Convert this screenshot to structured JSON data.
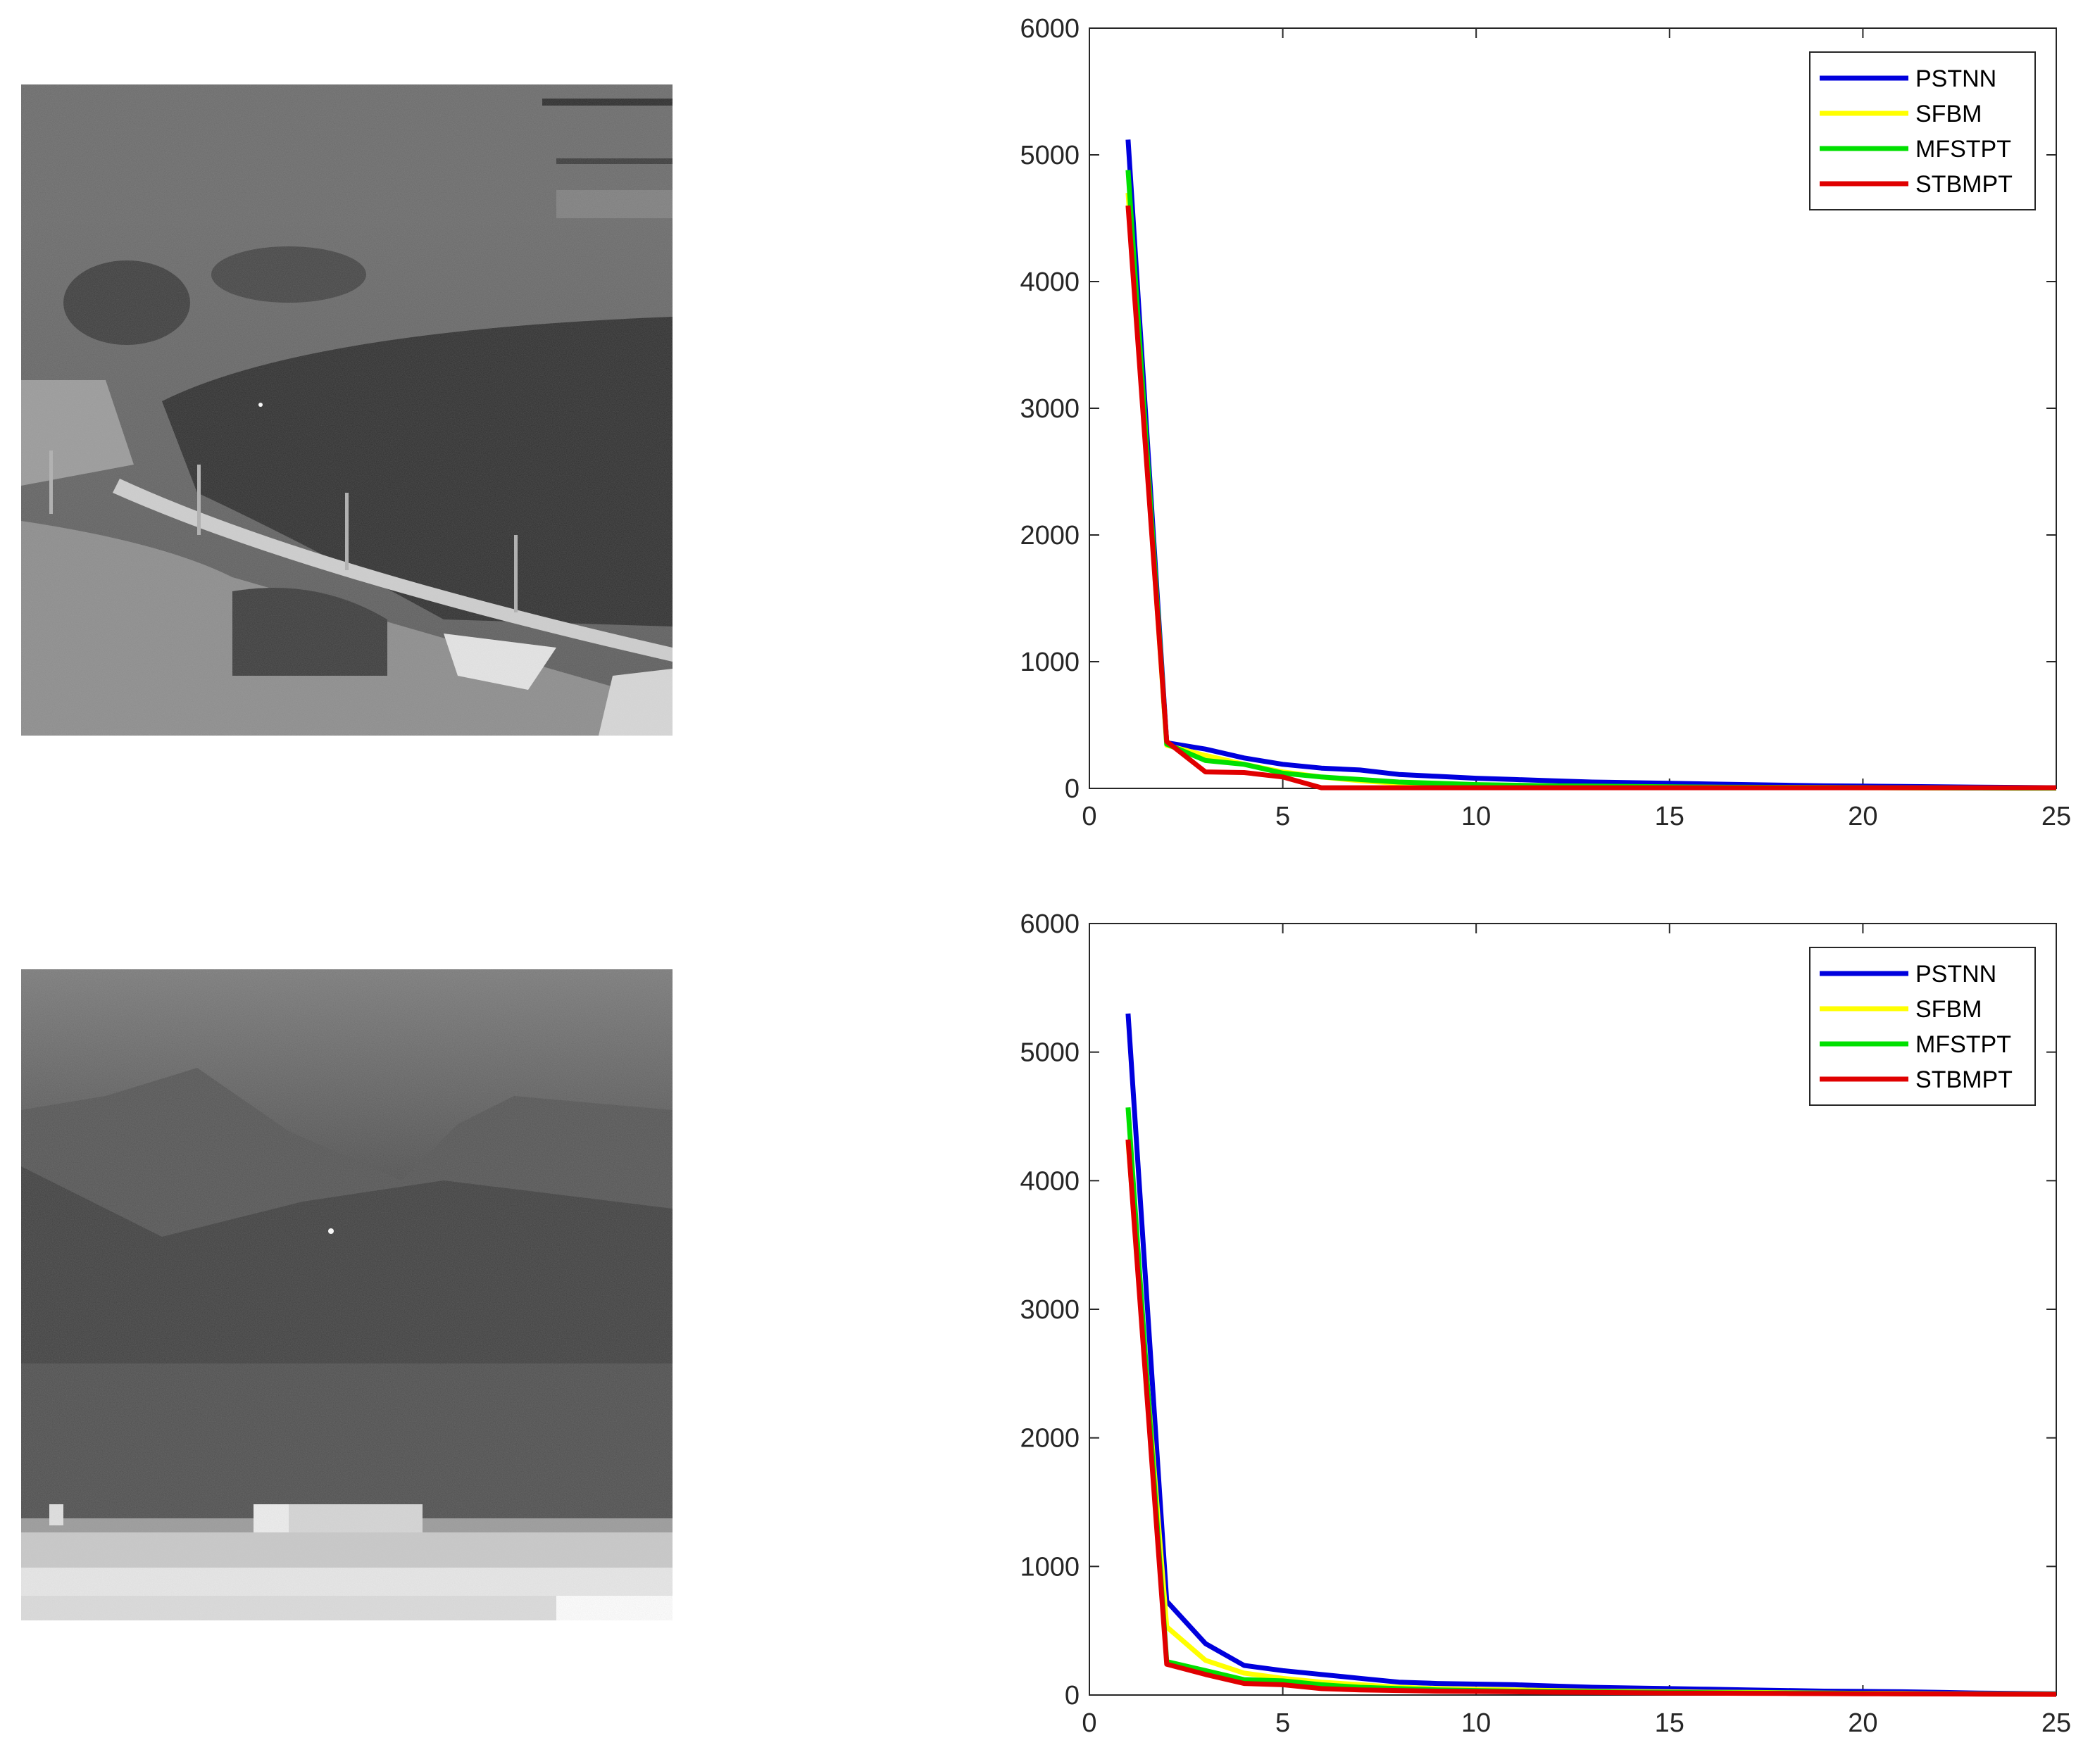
{
  "figure": {
    "panels": [
      {
        "image": {
          "kind": "infrared-scene",
          "scene": "hillside with trees, road and poles; small bright target in trees"
        }
      },
      {
        "image": {
          "kind": "infrared-scene",
          "scene": "mountains, dark sky region, buildings at bottom; small bright target in sky"
        }
      }
    ]
  },
  "chart_data": [
    {
      "type": "line",
      "title": "",
      "xlabel": "",
      "ylabel": "",
      "xlim": [
        0,
        25
      ],
      "ylim": [
        0,
        6000
      ],
      "xticks": [
        0,
        5,
        10,
        15,
        20,
        25
      ],
      "yticks": [
        0,
        1000,
        2000,
        3000,
        4000,
        5000,
        6000
      ],
      "grid": false,
      "legend_position": "top-right",
      "x": [
        1,
        2,
        3,
        4,
        5,
        6,
        7,
        8,
        9,
        10,
        11,
        12,
        13,
        14,
        15,
        16,
        17,
        18,
        19,
        20,
        21,
        22,
        23,
        24,
        25
      ],
      "series": [
        {
          "name": "PSTNN",
          "color": "#0000dd",
          "values": [
            5120,
            360,
            310,
            240,
            190,
            160,
            145,
            110,
            95,
            80,
            70,
            60,
            50,
            45,
            40,
            35,
            30,
            25,
            20,
            18,
            15,
            12,
            10,
            8,
            5
          ]
        },
        {
          "name": "SFBM",
          "color": "#ffff00",
          "values": [
            4700,
            340,
            260,
            190,
            130,
            90,
            60,
            40,
            30,
            25,
            20,
            18,
            15,
            12,
            10,
            9,
            8,
            7,
            6,
            5,
            4,
            3,
            3,
            2,
            2
          ]
        },
        {
          "name": "MFSTPT",
          "color": "#00e000",
          "values": [
            4880,
            350,
            220,
            190,
            120,
            90,
            70,
            50,
            40,
            30,
            25,
            20,
            18,
            15,
            12,
            10,
            9,
            8,
            7,
            6,
            5,
            4,
            3,
            2,
            2
          ]
        },
        {
          "name": "STBMPT",
          "color": "#e00000",
          "values": [
            4600,
            370,
            130,
            125,
            90,
            5,
            5,
            5,
            5,
            5,
            5,
            5,
            5,
            5,
            5,
            5,
            5,
            5,
            5,
            5,
            5,
            5,
            5,
            5,
            5
          ]
        }
      ]
    },
    {
      "type": "line",
      "title": "",
      "xlabel": "",
      "ylabel": "",
      "xlim": [
        0,
        25
      ],
      "ylim": [
        0,
        6000
      ],
      "xticks": [
        0,
        5,
        10,
        15,
        20,
        25
      ],
      "yticks": [
        0,
        1000,
        2000,
        3000,
        4000,
        5000,
        6000
      ],
      "grid": false,
      "legend_position": "top-right",
      "x": [
        1,
        2,
        3,
        4,
        5,
        6,
        7,
        8,
        9,
        10,
        11,
        12,
        13,
        14,
        15,
        16,
        17,
        18,
        19,
        20,
        21,
        22,
        23,
        24,
        25
      ],
      "series": [
        {
          "name": "PSTNN",
          "color": "#0000dd",
          "values": [
            5300,
            730,
            400,
            230,
            190,
            160,
            130,
            100,
            90,
            85,
            80,
            70,
            60,
            55,
            50,
            45,
            40,
            35,
            30,
            28,
            25,
            20,
            15,
            12,
            10
          ]
        },
        {
          "name": "SFBM",
          "color": "#ffff00",
          "values": [
            4300,
            530,
            270,
            170,
            130,
            100,
            80,
            60,
            50,
            45,
            40,
            35,
            30,
            28,
            25,
            22,
            20,
            18,
            15,
            13,
            12,
            10,
            9,
            8,
            7
          ]
        },
        {
          "name": "MFSTPT",
          "color": "#00e000",
          "values": [
            4570,
            260,
            190,
            120,
            110,
            80,
            60,
            50,
            40,
            35,
            30,
            28,
            25,
            22,
            20,
            18,
            16,
            15,
            14,
            12,
            10,
            9,
            8,
            7,
            6
          ]
        },
        {
          "name": "STBMPT",
          "color": "#e00000",
          "values": [
            4320,
            240,
            160,
            90,
            80,
            50,
            40,
            35,
            30,
            28,
            25,
            22,
            20,
            18,
            15,
            14,
            13,
            12,
            11,
            10,
            9,
            8,
            7,
            6,
            5
          ]
        }
      ]
    }
  ]
}
